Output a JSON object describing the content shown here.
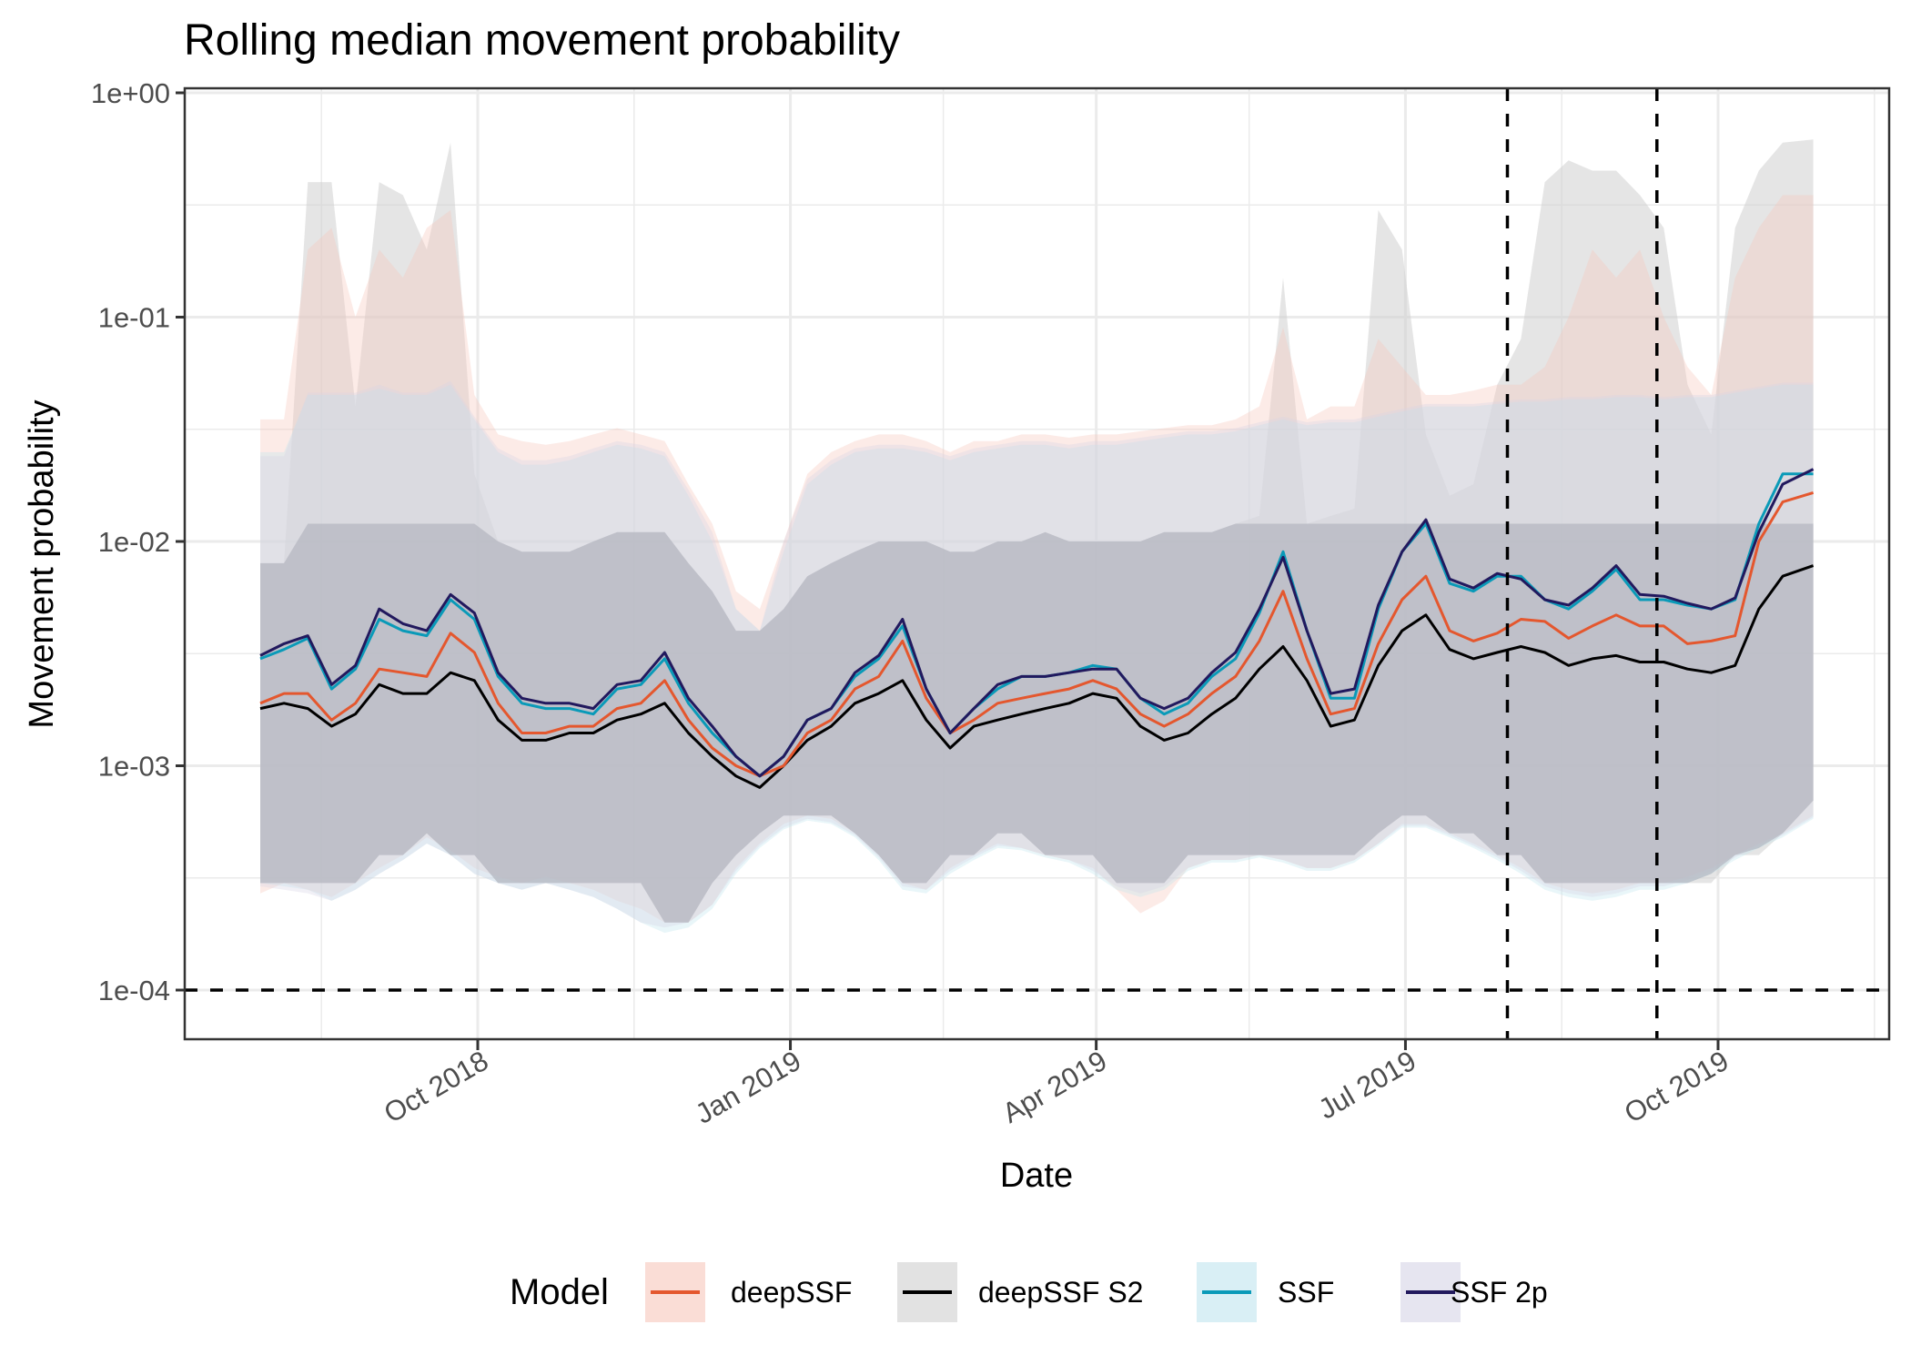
{
  "chart_data": {
    "type": "line",
    "title": "Rolling median movement probability",
    "xlabel": "Date",
    "ylabel": "Movement probability",
    "y_scale": "log10",
    "ylim": [
      6e-05,
      1
    ],
    "y_ticks": [
      {
        "value": 1,
        "label": "1e+00"
      },
      {
        "value": 0.1,
        "label": "1e-01"
      },
      {
        "value": 0.01,
        "label": "1e-02"
      },
      {
        "value": 0.001,
        "label": "1e-03"
      },
      {
        "value": 0.0001,
        "label": "1e-04"
      }
    ],
    "x_unit": "days since 2018-10-01",
    "xlim": [
      -65,
      410
    ],
    "x_ticks": [
      {
        "value": 0,
        "label": "Oct 2018"
      },
      {
        "value": 92,
        "label": "Jan 2019"
      },
      {
        "value": 182,
        "label": "Apr 2019"
      },
      {
        "value": 273,
        "label": "Jul 2019"
      },
      {
        "value": 365,
        "label": "Oct 2019"
      }
    ],
    "x_minor_ticks": [
      -46,
      46,
      137,
      227,
      319,
      411
    ],
    "grid": true,
    "reference_lines": [
      {
        "orientation": "horizontal",
        "value": 0.0001,
        "style": "dashed"
      },
      {
        "orientation": "vertical",
        "value": 303,
        "label_date": "2019-07-31",
        "style": "dashed"
      },
      {
        "orientation": "vertical",
        "value": 347,
        "label_date": "2019-09-13",
        "style": "dashed"
      }
    ],
    "legend": {
      "title": "Model",
      "position": "bottom"
    },
    "x": [
      -64,
      -57,
      -50,
      -43,
      -36,
      -29,
      -22,
      -15,
      -8,
      -1,
      6,
      13,
      20,
      27,
      34,
      41,
      48,
      55,
      62,
      69,
      76,
      83,
      90,
      97,
      104,
      111,
      118,
      125,
      132,
      139,
      146,
      153,
      160,
      167,
      174,
      181,
      188,
      195,
      202,
      209,
      216,
      223,
      230,
      237,
      244,
      251,
      258,
      265,
      272,
      279,
      286,
      293,
      300,
      307,
      314,
      321,
      328,
      335,
      342,
      349,
      356,
      363,
      370,
      377,
      384,
      393
    ],
    "series": [
      {
        "name": "deepSSF",
        "color": "#E4572E",
        "fill": "#F7C7BA",
        "median": [
          0.0019,
          0.0021,
          0.0021,
          0.0016,
          0.0019,
          0.0027,
          0.0026,
          0.0025,
          0.0039,
          0.0032,
          0.0019,
          0.0014,
          0.0014,
          0.0015,
          0.0015,
          0.0018,
          0.0019,
          0.0024,
          0.0016,
          0.0012,
          0.001,
          0.0009,
          0.001,
          0.0014,
          0.0016,
          0.0022,
          0.0025,
          0.0036,
          0.002,
          0.0014,
          0.0016,
          0.0019,
          0.002,
          0.0021,
          0.0022,
          0.0024,
          0.0022,
          0.0017,
          0.0015,
          0.0017,
          0.0021,
          0.0025,
          0.0036,
          0.006,
          0.003,
          0.0017,
          0.0018,
          0.0035,
          0.0055,
          0.007,
          0.004,
          0.0036,
          0.0039,
          0.0045,
          0.0044,
          0.0037,
          0.0042,
          0.0047,
          0.0042,
          0.0042,
          0.0035,
          0.0036,
          0.0038,
          0.01,
          0.015,
          0.0165
        ],
        "upper": [
          0.035,
          0.035,
          0.2,
          0.25,
          0.1,
          0.2,
          0.15,
          0.25,
          0.3,
          0.045,
          0.03,
          0.028,
          0.027,
          0.028,
          0.03,
          0.032,
          0.03,
          0.028,
          0.018,
          0.012,
          0.006,
          0.005,
          0.01,
          0.02,
          0.025,
          0.028,
          0.03,
          0.03,
          0.028,
          0.025,
          0.028,
          0.028,
          0.03,
          0.03,
          0.029,
          0.03,
          0.03,
          0.031,
          0.032,
          0.033,
          0.033,
          0.035,
          0.04,
          0.09,
          0.035,
          0.04,
          0.04,
          0.08,
          0.06,
          0.045,
          0.045,
          0.047,
          0.05,
          0.05,
          0.06,
          0.1,
          0.2,
          0.15,
          0.2,
          0.1,
          0.06,
          0.045,
          0.15,
          0.25,
          0.35,
          0.35
        ],
        "lower": [
          0.00027,
          0.0003,
          0.00028,
          0.00026,
          0.0003,
          0.00035,
          0.0004,
          0.00048,
          0.00042,
          0.00035,
          0.00032,
          0.0003,
          0.00032,
          0.0003,
          0.00028,
          0.00025,
          0.00023,
          0.0002,
          0.0002,
          0.00024,
          0.00035,
          0.00045,
          0.00055,
          0.0006,
          0.00058,
          0.0005,
          0.0004,
          0.0003,
          0.00028,
          0.00035,
          0.0004,
          0.00045,
          0.00043,
          0.0004,
          0.00038,
          0.00035,
          0.00028,
          0.00022,
          0.00025,
          0.00035,
          0.00038,
          0.00038,
          0.0004,
          0.00038,
          0.00035,
          0.00035,
          0.00038,
          0.00045,
          0.00055,
          0.00055,
          0.0005,
          0.00045,
          0.0004,
          0.00035,
          0.0003,
          0.00028,
          0.00027,
          0.00028,
          0.0003,
          0.0003,
          0.00032,
          0.00035,
          0.0004,
          0.00045,
          0.0005,
          0.0006
        ]
      },
      {
        "name": "deepSSF S2",
        "color": "#000000",
        "fill": "#CFCFCF",
        "median": [
          0.0018,
          0.0019,
          0.0018,
          0.0015,
          0.0017,
          0.0023,
          0.0021,
          0.0021,
          0.0026,
          0.0024,
          0.0016,
          0.0013,
          0.0013,
          0.0014,
          0.0014,
          0.0016,
          0.0017,
          0.0019,
          0.0014,
          0.0011,
          0.0009,
          0.0008,
          0.001,
          0.0013,
          0.0015,
          0.0019,
          0.0021,
          0.0024,
          0.0016,
          0.0012,
          0.0015,
          0.0016,
          0.0017,
          0.0018,
          0.0019,
          0.0021,
          0.002,
          0.0015,
          0.0013,
          0.0014,
          0.0017,
          0.002,
          0.0027,
          0.0034,
          0.0024,
          0.0015,
          0.0016,
          0.0028,
          0.004,
          0.0047,
          0.0033,
          0.003,
          0.0032,
          0.0034,
          0.0032,
          0.0028,
          0.003,
          0.0031,
          0.0029,
          0.0029,
          0.0027,
          0.0026,
          0.0028,
          0.005,
          0.007,
          0.0078
        ],
        "upper": [
          0.008,
          0.008,
          0.4,
          0.4,
          0.04,
          0.4,
          0.35,
          0.2,
          0.6,
          0.02,
          0.01,
          0.009,
          0.009,
          0.009,
          0.01,
          0.011,
          0.011,
          0.011,
          0.008,
          0.006,
          0.004,
          0.004,
          0.005,
          0.007,
          0.008,
          0.009,
          0.01,
          0.01,
          0.01,
          0.009,
          0.009,
          0.01,
          0.01,
          0.011,
          0.01,
          0.01,
          0.01,
          0.01,
          0.011,
          0.011,
          0.011,
          0.012,
          0.013,
          0.15,
          0.012,
          0.013,
          0.014,
          0.3,
          0.2,
          0.03,
          0.016,
          0.018,
          0.05,
          0.08,
          0.4,
          0.5,
          0.45,
          0.45,
          0.35,
          0.25,
          0.05,
          0.03,
          0.25,
          0.45,
          0.6,
          0.62
        ],
        "lower": [
          0.0003,
          0.0003,
          0.0003,
          0.0003,
          0.0003,
          0.0004,
          0.0004,
          0.0005,
          0.0004,
          0.0004,
          0.0003,
          0.0003,
          0.0003,
          0.0003,
          0.0003,
          0.0003,
          0.0003,
          0.0002,
          0.0002,
          0.0003,
          0.0004,
          0.0005,
          0.0006,
          0.0006,
          0.0006,
          0.0005,
          0.0004,
          0.0003,
          0.0003,
          0.0004,
          0.0004,
          0.0005,
          0.0005,
          0.0004,
          0.0004,
          0.0004,
          0.0003,
          0.0003,
          0.0003,
          0.0004,
          0.0004,
          0.0004,
          0.0004,
          0.0004,
          0.0004,
          0.0004,
          0.0004,
          0.0005,
          0.0006,
          0.0006,
          0.0005,
          0.0005,
          0.0004,
          0.0004,
          0.0003,
          0.0003,
          0.0003,
          0.0003,
          0.0003,
          0.0003,
          0.0003,
          0.0003,
          0.0004,
          0.0004,
          0.0005,
          0.0007
        ]
      },
      {
        "name": "SSF",
        "color": "#0A9AB8",
        "fill": "#BFE4EE",
        "median": [
          0.003,
          0.0033,
          0.0037,
          0.0022,
          0.0027,
          0.0045,
          0.004,
          0.0038,
          0.0055,
          0.0045,
          0.0025,
          0.0019,
          0.0018,
          0.0018,
          0.0017,
          0.0022,
          0.0023,
          0.003,
          0.0019,
          0.0014,
          0.0011,
          0.0009,
          0.0011,
          0.0016,
          0.0018,
          0.0025,
          0.003,
          0.0042,
          0.0022,
          0.0014,
          0.0018,
          0.0022,
          0.0025,
          0.0025,
          0.0026,
          0.0028,
          0.0027,
          0.002,
          0.0017,
          0.0019,
          0.0025,
          0.003,
          0.0048,
          0.009,
          0.004,
          0.002,
          0.002,
          0.005,
          0.009,
          0.012,
          0.0065,
          0.006,
          0.007,
          0.007,
          0.0055,
          0.005,
          0.006,
          0.0075,
          0.0055,
          0.0055,
          0.0052,
          0.005,
          0.0055,
          0.012,
          0.02,
          0.02
        ],
        "upper": [
          0.025,
          0.025,
          0.045,
          0.045,
          0.045,
          0.048,
          0.045,
          0.045,
          0.05,
          0.035,
          0.025,
          0.022,
          0.022,
          0.023,
          0.025,
          0.027,
          0.026,
          0.024,
          0.016,
          0.01,
          0.005,
          0.004,
          0.009,
          0.018,
          0.022,
          0.025,
          0.026,
          0.026,
          0.025,
          0.023,
          0.025,
          0.026,
          0.027,
          0.027,
          0.026,
          0.027,
          0.027,
          0.028,
          0.029,
          0.03,
          0.03,
          0.031,
          0.033,
          0.035,
          0.033,
          0.034,
          0.034,
          0.036,
          0.038,
          0.04,
          0.04,
          0.04,
          0.041,
          0.042,
          0.042,
          0.043,
          0.043,
          0.044,
          0.044,
          0.043,
          0.044,
          0.044,
          0.046,
          0.048,
          0.05,
          0.05
        ],
        "lower": [
          0.0003,
          0.00029,
          0.00028,
          0.00025,
          0.00028,
          0.00033,
          0.00038,
          0.00045,
          0.0004,
          0.00033,
          0.0003,
          0.00028,
          0.0003,
          0.00028,
          0.00026,
          0.00023,
          0.0002,
          0.00018,
          0.00019,
          0.00023,
          0.00033,
          0.00043,
          0.00052,
          0.00057,
          0.00055,
          0.00048,
          0.00038,
          0.00028,
          0.00027,
          0.00033,
          0.00038,
          0.00043,
          0.00042,
          0.00039,
          0.00037,
          0.00033,
          0.00028,
          0.00026,
          0.00028,
          0.00034,
          0.00037,
          0.00037,
          0.00039,
          0.00037,
          0.00034,
          0.00034,
          0.00037,
          0.00044,
          0.00053,
          0.00053,
          0.00048,
          0.00043,
          0.00038,
          0.00033,
          0.00028,
          0.00026,
          0.00025,
          0.00026,
          0.00028,
          0.00028,
          0.0003,
          0.00033,
          0.00038,
          0.00043,
          0.00048,
          0.00058
        ]
      },
      {
        "name": "SSF 2p",
        "color": "#22195E",
        "fill": "#D6D3E6",
        "median": [
          0.0031,
          0.0035,
          0.0038,
          0.0023,
          0.0028,
          0.005,
          0.0043,
          0.004,
          0.0058,
          0.0048,
          0.0026,
          0.002,
          0.0019,
          0.0019,
          0.0018,
          0.0023,
          0.0024,
          0.0032,
          0.002,
          0.0015,
          0.0011,
          0.0009,
          0.0011,
          0.0016,
          0.0018,
          0.0026,
          0.0031,
          0.0045,
          0.0022,
          0.0014,
          0.0018,
          0.0023,
          0.0025,
          0.0025,
          0.0026,
          0.0027,
          0.0027,
          0.002,
          0.0018,
          0.002,
          0.0026,
          0.0032,
          0.005,
          0.0085,
          0.004,
          0.0021,
          0.0022,
          0.0052,
          0.009,
          0.0125,
          0.0068,
          0.0062,
          0.0072,
          0.0068,
          0.0055,
          0.0052,
          0.0062,
          0.0078,
          0.0058,
          0.0057,
          0.0053,
          0.005,
          0.0056,
          0.011,
          0.018,
          0.021
        ],
        "upper": [
          0.024,
          0.024,
          0.046,
          0.046,
          0.046,
          0.05,
          0.046,
          0.046,
          0.052,
          0.036,
          0.026,
          0.023,
          0.023,
          0.024,
          0.026,
          0.028,
          0.027,
          0.025,
          0.017,
          0.011,
          0.005,
          0.004,
          0.01,
          0.019,
          0.023,
          0.026,
          0.027,
          0.027,
          0.026,
          0.024,
          0.026,
          0.027,
          0.028,
          0.028,
          0.027,
          0.028,
          0.028,
          0.029,
          0.03,
          0.031,
          0.031,
          0.032,
          0.034,
          0.036,
          0.034,
          0.035,
          0.035,
          0.037,
          0.039,
          0.041,
          0.041,
          0.041,
          0.042,
          0.043,
          0.043,
          0.044,
          0.044,
          0.045,
          0.045,
          0.044,
          0.045,
          0.045,
          0.047,
          0.049,
          0.051,
          0.051
        ],
        "lower": [
          0.00029,
          0.00028,
          0.00027,
          0.00025,
          0.00028,
          0.00033,
          0.00038,
          0.00045,
          0.0004,
          0.00033,
          0.0003,
          0.00028,
          0.0003,
          0.00028,
          0.00026,
          0.00023,
          0.0002,
          0.00019,
          0.0002,
          0.00024,
          0.00034,
          0.00044,
          0.00053,
          0.00058,
          0.00056,
          0.00049,
          0.00039,
          0.00029,
          0.00028,
          0.00034,
          0.00039,
          0.00044,
          0.00043,
          0.0004,
          0.00038,
          0.00034,
          0.00029,
          0.00027,
          0.00029,
          0.00035,
          0.00038,
          0.00038,
          0.0004,
          0.00038,
          0.00035,
          0.00035,
          0.00038,
          0.00045,
          0.00054,
          0.00054,
          0.00049,
          0.00044,
          0.00039,
          0.00034,
          0.00029,
          0.00027,
          0.00026,
          0.00027,
          0.00029,
          0.00029,
          0.00031,
          0.00034,
          0.00039,
          0.00044,
          0.00049,
          0.00059
        ]
      }
    ]
  }
}
